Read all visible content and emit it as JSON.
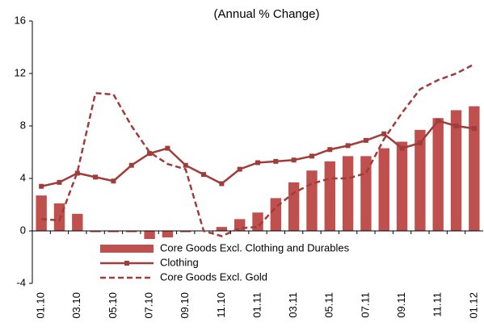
{
  "chart_data": {
    "type": "bar_line",
    "title": "(Annual % Change)",
    "categories": [
      "01.10",
      null,
      "03.10",
      null,
      "05.10",
      null,
      "07.10",
      null,
      "09.10",
      null,
      "11.10",
      null,
      "01.11",
      null,
      "03.11",
      null,
      "05.11",
      null,
      "07.11",
      null,
      "09.11",
      null,
      "11.11",
      null,
      "01.12"
    ],
    "series": [
      {
        "name": "Core Goods Excl. Clothing and Durables",
        "kind": "bar",
        "color": "#c0504d",
        "values": [
          2.7,
          2.1,
          1.3,
          -0.1,
          -0.1,
          -0.1,
          -0.7,
          -0.5,
          -0.1,
          0,
          0.3,
          0.9,
          1.4,
          2.5,
          3.7,
          4.6,
          5.3,
          5.7,
          5.7,
          6.3,
          6.8,
          7.7,
          8.6,
          9.2,
          9.5
        ]
      },
      {
        "name": "Clothing",
        "kind": "line-marker",
        "color": "#a03c3a",
        "values": [
          3.4,
          3.7,
          4.4,
          4.1,
          3.8,
          5.0,
          5.9,
          6.3,
          5.0,
          4.3,
          3.6,
          4.7,
          5.2,
          5.3,
          5.4,
          5.7,
          6.2,
          6.5,
          6.9,
          7.4,
          6.3,
          6.7,
          8.4,
          8.0,
          7.8
        ]
      },
      {
        "name": "Core Goods Excl. Gold",
        "kind": "line-dashed",
        "color": "#a03c3a",
        "values": [
          0.9,
          0.8,
          4.5,
          10.5,
          10.4,
          8.0,
          6.0,
          5.1,
          4.7,
          0.0,
          -0.4,
          0.2,
          0.3,
          1.8,
          2.9,
          3.6,
          4.0,
          4.0,
          4.4,
          7.0,
          9.0,
          10.8,
          11.5,
          12.0,
          12.7
        ]
      }
    ],
    "ylim": [
      -4,
      16
    ],
    "yticks": [
      -4,
      0,
      4,
      8,
      12,
      16
    ],
    "grid": false,
    "legend": "bottom"
  }
}
